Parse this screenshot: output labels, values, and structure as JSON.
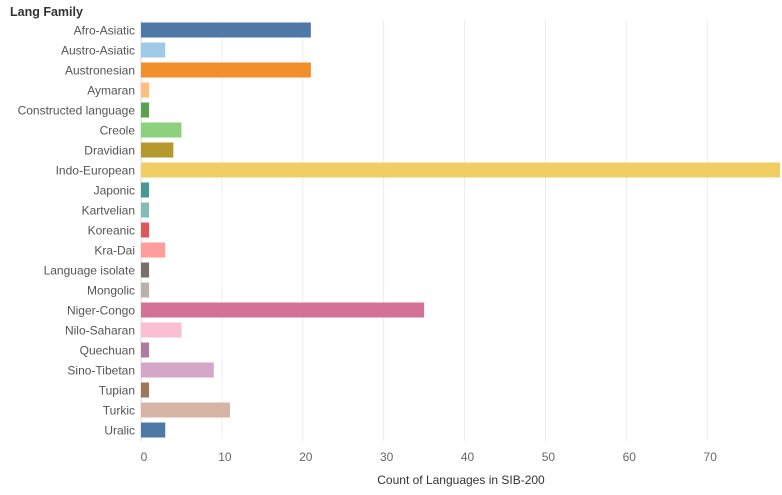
{
  "chart_data": {
    "type": "bar",
    "orientation": "horizontal",
    "title": "",
    "ylabel": "Lang Family",
    "xlabel": "Count of Languages in SIB-200",
    "xlim": [
      0,
      79
    ],
    "x_ticks": [
      "0",
      "10",
      "20",
      "30",
      "40",
      "50",
      "60",
      "70"
    ],
    "grid": "vertical",
    "categories": [
      "Afro-Asiatic",
      "Austro-Asiatic",
      "Austronesian",
      "Aymaran",
      "Constructed language",
      "Creole",
      "Dravidian",
      "Indo-European",
      "Japonic",
      "Kartvelian",
      "Koreanic",
      "Kra-Dai",
      "Language isolate",
      "Mongolic",
      "Niger-Congo",
      "Nilo-Saharan",
      "Quechuan",
      "Sino-Tibetan",
      "Tupian",
      "Turkic",
      "Uralic"
    ],
    "values": [
      21,
      3,
      21,
      1,
      1,
      5,
      4,
      79,
      1,
      1,
      1,
      3,
      1,
      1,
      35,
      5,
      1,
      9,
      1,
      11,
      3
    ],
    "colors": [
      "#4e79a7",
      "#a0cbe8",
      "#f28e2b",
      "#ffbe7d",
      "#59a14f",
      "#8cd17d",
      "#b6992d",
      "#f1ce63",
      "#499894",
      "#86bcb6",
      "#e15759",
      "#ff9d9a",
      "#79706e",
      "#bab0ac",
      "#d37295",
      "#fabfd2",
      "#b07aa1",
      "#d4a6c8",
      "#9d7660",
      "#d7b5a6",
      "#4e79a7"
    ]
  }
}
